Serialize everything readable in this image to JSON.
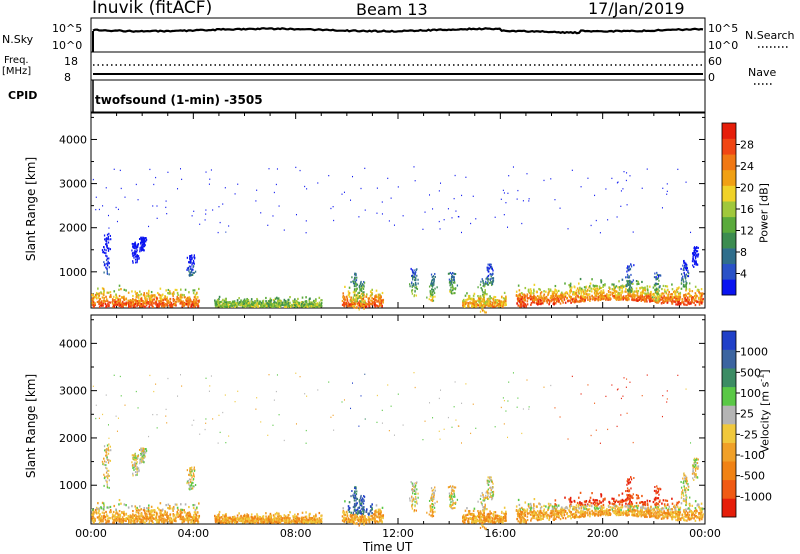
{
  "header": {
    "station": "Inuvik (fitACF)",
    "beam": "Beam 13",
    "date": "17/Jan/2019"
  },
  "top_panels": {
    "nsky_label": "N.Sky",
    "nsky_ticks": [
      "10^5",
      "10^0"
    ],
    "nsearch_label": "N.Search",
    "nsearch_ticks": [
      "10^5",
      "10^0"
    ],
    "freq_label": "Freq.",
    "freq_unit": "[MHz]",
    "freq_ticks": [
      "18",
      "8"
    ],
    "nave_label": "Nave",
    "nave_ticks": [
      "60",
      "0"
    ],
    "cpid_label": "CPID",
    "cpid_value": "twofsound (1-min) -3505"
  },
  "chart_data": [
    {
      "type": "heatmap",
      "name": "power",
      "ylabel": "Slant Range [km]",
      "ylim": [
        180,
        4600
      ],
      "yticks": [
        "1000",
        "2000",
        "3000",
        "4000"
      ],
      "colorbar_label": "Power [dB]",
      "colorbar_ticks": [
        "4",
        "8",
        "12",
        "16",
        "20",
        "24",
        "28"
      ],
      "colorscale": [
        "#0a14f0",
        "#2a52c8",
        "#2f6e8c",
        "#3c8c50",
        "#5aaa3c",
        "#a0c83c",
        "#f0d228",
        "#f0a014",
        "#f07814",
        "#f04614",
        "#e61e0a"
      ]
    },
    {
      "type": "heatmap",
      "name": "velocity",
      "ylabel": "Slant Range [km]",
      "ylim": [
        180,
        4600
      ],
      "yticks": [
        "1000",
        "2000",
        "3000",
        "4000"
      ],
      "colorbar_label": "Velocity [m s",
      "colorbar_label_sup": "-1",
      "colorbar_label_end": "]",
      "colorbar_ticks": [
        "1000",
        "500",
        "100",
        "25",
        "-25",
        "-100",
        "-500",
        "-1000"
      ],
      "colorscale": [
        "#2040c8",
        "#3c64a0",
        "#3c8c64",
        "#5ac846",
        "#b4b4b4",
        "#f0c83c",
        "#f0a028",
        "#f08214",
        "#f05a14",
        "#e61e0a"
      ],
      "xlabel": "Time UT",
      "xticks": [
        "00:00",
        "04:00",
        "08:00",
        "12:00",
        "16:00",
        "20:00",
        "00:00"
      ]
    }
  ]
}
